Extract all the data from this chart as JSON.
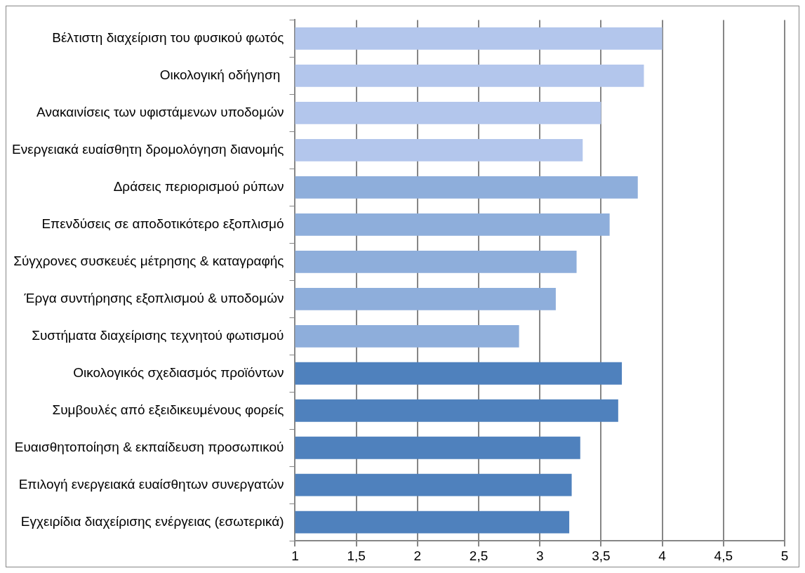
{
  "chart_data": {
    "type": "bar",
    "orientation": "horizontal",
    "categories": [
      "Βέλτιστη διαχείριση του φυσικού φωτός",
      "Οικολογική οδήγηση ",
      "Ανακαινίσεις των υφιστάμενων υποδομών",
      "Ενεργειακά ευαίσθητη δρομολόγηση διανομής",
      "Δράσεις περιορισμού ρύπων",
      "Επενδύσεις σε αποδοτικότερο εξοπλισμό",
      "Σύγχρονες συσκευές μέτρησης & καταγραφής",
      "Έργα συντήρησης εξοπλισμού & υποδομών",
      "Συστήματα διαχείρισης τεχνητού φωτισμού",
      "Οικολογικός σχεδιασμός προϊόντων",
      "Συμβουλές από εξειδικευμένους φορείς",
      "Ευαισθητοποίηση & εκπαίδευση προσωπικού",
      "Επιλογή ενεργειακά ευαίσθητων συνεργατών",
      "Εγχειρίδια διαχείρισης ενέργειας (εσωτερικά)"
    ],
    "values": [
      4.0,
      3.85,
      3.5,
      3.35,
      3.8,
      3.57,
      3.3,
      3.13,
      2.83,
      3.67,
      3.64,
      3.33,
      3.26,
      3.24
    ],
    "colors": [
      "#b3c6ec",
      "#b3c6ec",
      "#b3c6ec",
      "#b3c6ec",
      "#8eaedb",
      "#8eaedb",
      "#8eaedb",
      "#8eaedb",
      "#8eaedb",
      "#4f81bd",
      "#4f81bd",
      "#4f81bd",
      "#4f81bd",
      "#4f81bd"
    ],
    "xlim": [
      1,
      5
    ],
    "xticks": [
      1,
      {
        "value": 1.5,
        "label": "1,5"
      },
      2,
      {
        "value": 2.5,
        "label": "2,5"
      },
      3,
      {
        "value": 3.5,
        "label": "3,5"
      },
      4,
      {
        "value": 4.5,
        "label": "4,5"
      },
      5
    ],
    "grid": "x",
    "legend": false
  }
}
